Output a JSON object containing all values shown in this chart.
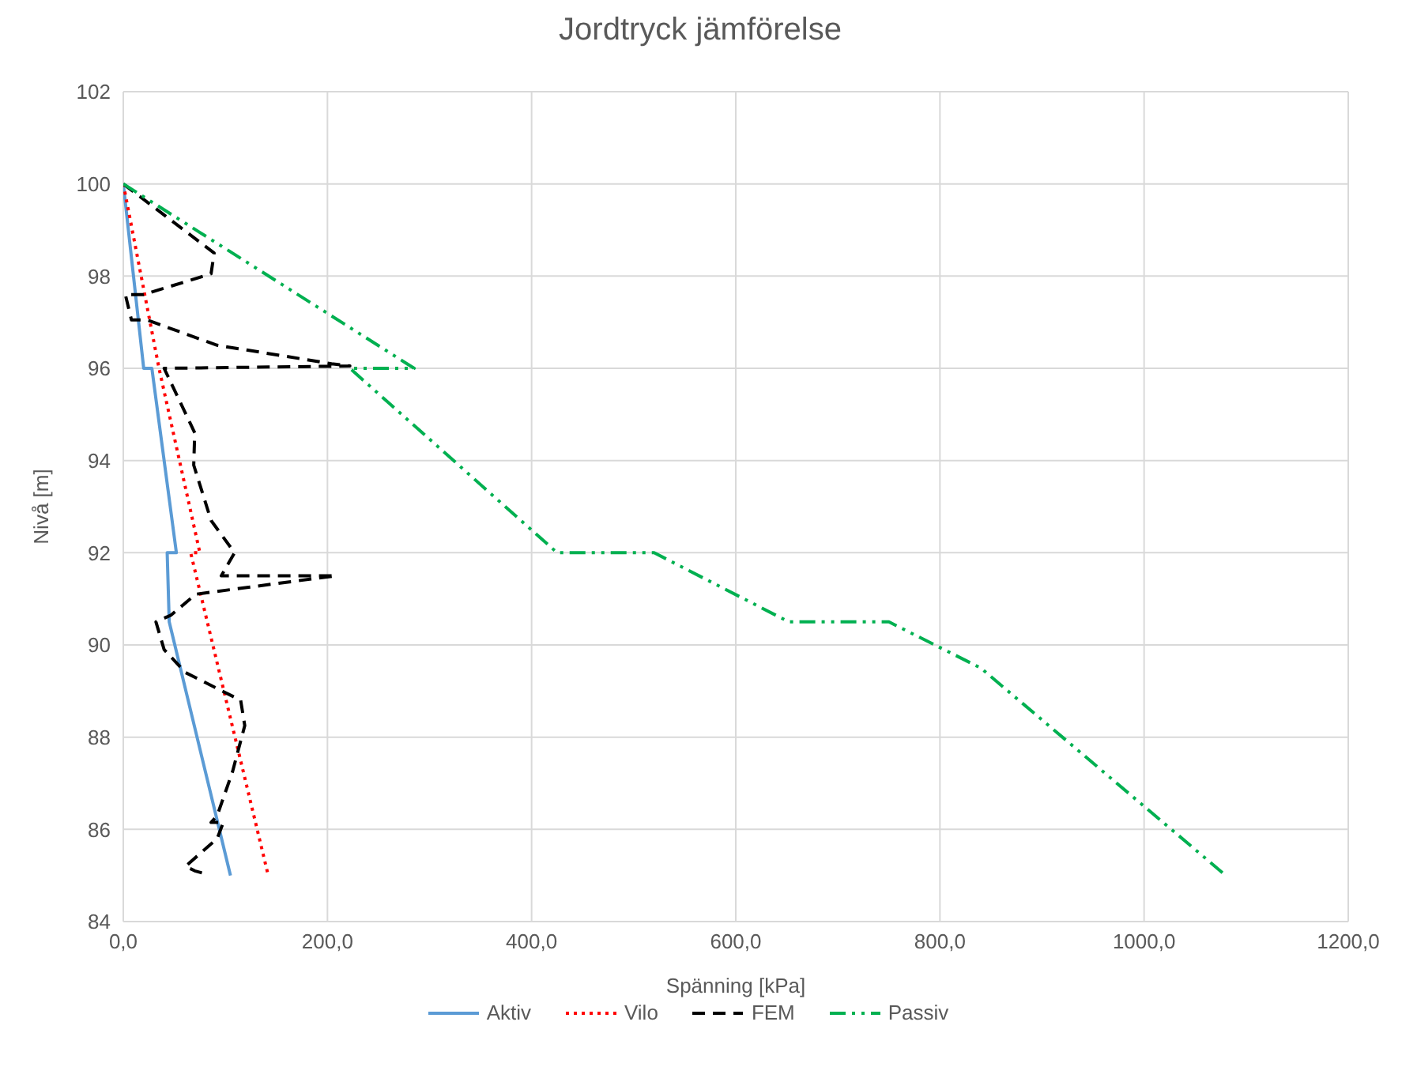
{
  "chart_data": {
    "type": "line",
    "title": "Jordtryck jämförelse",
    "xlabel": "Spänning [kPa]",
    "ylabel": "Nivå [m]",
    "xlim": [
      0,
      1200
    ],
    "xticks": [
      {
        "value": 0,
        "label": "0,0"
      },
      {
        "value": 200,
        "label": "200,0"
      },
      {
        "value": 400,
        "label": "400,0"
      },
      {
        "value": 600,
        "label": "600,0"
      },
      {
        "value": 800,
        "label": "800,0"
      },
      {
        "value": 1000,
        "label": "1000,0"
      },
      {
        "value": 1200,
        "label": "1200,0"
      }
    ],
    "ylim": [
      84,
      102
    ],
    "yticks": [
      84,
      86,
      88,
      90,
      92,
      94,
      96,
      98,
      100,
      102
    ],
    "grid": true,
    "legend": "bottom",
    "marker": "none",
    "series": [
      {
        "name": "Aktiv",
        "color": "#5b9bd5",
        "line_style": "solid",
        "x": [
          0,
          20,
          28,
          52,
          43,
          45,
          105
        ],
        "values": [
          100,
          96,
          96,
          92,
          92,
          90.5,
          85
        ]
      },
      {
        "name": "Vilo",
        "color": "#ff0000",
        "line_style": "dotted",
        "x": [
          0,
          35,
          75,
          66,
          142
        ],
        "values": [
          100,
          96,
          92,
          92,
          85
        ]
      },
      {
        "name": "FEM",
        "color": "#000000",
        "line_style": "dashed",
        "x": [
          0,
          89,
          86,
          20,
          2,
          8,
          23,
          92,
          204,
          222,
          40,
          70,
          69,
          86,
          109,
          96,
          208,
          71,
          47,
          32,
          40,
          61,
          115,
          119,
          107,
          92,
          86,
          98,
          92,
          61,
          70,
          78
        ],
        "values": [
          100,
          98.5,
          98.05,
          97.6,
          97.6,
          97.05,
          97.05,
          96.5,
          96.1,
          96.05,
          96,
          94.6,
          93.9,
          92.7,
          92,
          91.5,
          91.5,
          91.1,
          90.65,
          90.5,
          89.9,
          89.4,
          88.8,
          88.25,
          87.25,
          86.3,
          86.15,
          86.15,
          85.8,
          85.2,
          85.1,
          85.05
        ]
      },
      {
        "name": "Passiv",
        "color": "#00b050",
        "line_style": "dashdot",
        "x": [
          0,
          285,
          222,
          425,
          520,
          652,
          750,
          840,
          1080
        ],
        "values": [
          100,
          96,
          96,
          92,
          92,
          90.5,
          90.5,
          89.5,
          85
        ]
      }
    ]
  }
}
